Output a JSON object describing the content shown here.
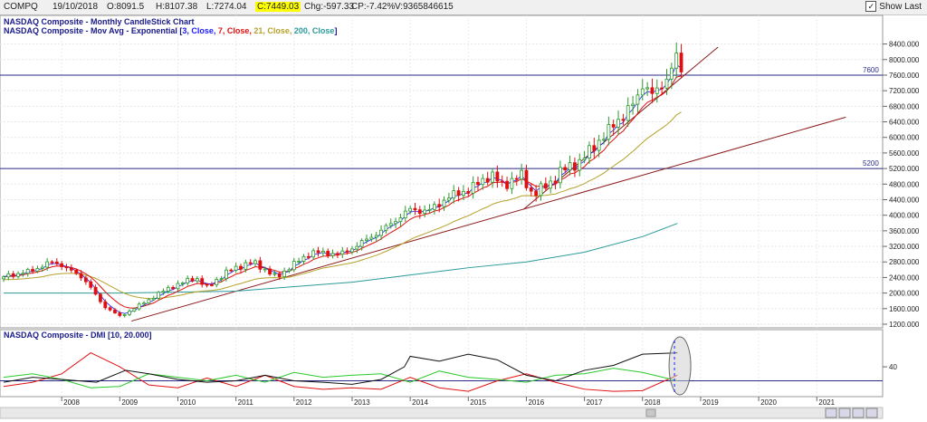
{
  "header": {
    "symbol": "COMPQ",
    "date": "19/10/2018",
    "open": "O:8091.5",
    "high": "H:8107.38",
    "low": "L:7274.04",
    "close": "C:7449.03",
    "chg": "Chg:-597.33",
    "cp": "CP:-7.42%",
    "volume": "V:9365846615",
    "show_last": "Show Last"
  },
  "colors": {
    "up": "#2b9a2b",
    "down": "#e01010",
    "ema3": "#1a1aff",
    "ema7": "#e01010",
    "ema21": "#b5a22a",
    "ema200": "#2a9a9a",
    "trend": "#8b1a1a",
    "hline": "#2a2a8a",
    "plus_di": "#2aca2a",
    "minus_di": "#e01010",
    "adx": "#111111"
  },
  "chart_data": [
    {
      "type": "candlestick",
      "title": "NASDAQ Composite - Monthly CandleStick Chart",
      "legend_prefix": "NASDAQ Composite - Mov Avg - Exponential [",
      "legend_parts": [
        {
          "text": "3, Close,",
          "color": "#1a1aff"
        },
        {
          "text": " 7, Close,",
          "color": "#e01010"
        },
        {
          "text": " 21, Close,",
          "color": "#b5a22a"
        },
        {
          "text": " 200, Close",
          "color": "#2a9a9a"
        }
      ],
      "legend_suffix": "]",
      "ylim": [
        1200,
        8600
      ],
      "y_ticks": [
        "8400.000",
        "8000.000",
        "7600.000",
        "7200.000",
        "6800.000",
        "6400.000",
        "6000.000",
        "5600.000",
        "5200.000",
        "4800.000",
        "4400.000",
        "4000.000",
        "3600.000",
        "3200.000",
        "2800.000",
        "2400.000",
        "2000.000",
        "1600.000",
        "1200.000"
      ],
      "x_ticks": [
        "2008",
        "2009",
        "2010",
        "2011",
        "2012",
        "2013",
        "2014",
        "2015",
        "2016",
        "2017",
        "2018",
        "2019",
        "2020",
        "2021"
      ],
      "x_range": [
        2007,
        2021.9
      ],
      "horizontal_lines": [
        {
          "value": 7600,
          "label": "7600"
        },
        {
          "value": 5200,
          "label": "5200"
        }
      ],
      "trendlines": [
        {
          "x1": 2009.2,
          "y1": 1280,
          "x2": 2021.5,
          "y2": 6520
        },
        {
          "x1": 2015.95,
          "y1": 4150,
          "x2": 2019.3,
          "y2": 8320
        }
      ],
      "ema200": [
        [
          2007,
          2000
        ],
        [
          2009,
          2000
        ],
        [
          2011,
          2050
        ],
        [
          2013,
          2280
        ],
        [
          2015,
          2650
        ],
        [
          2016,
          2800
        ],
        [
          2017,
          3050
        ],
        [
          2018,
          3450
        ],
        [
          2018.6,
          3790
        ]
      ],
      "anchors": [
        [
          2007.0,
          2420
        ],
        [
          2007.5,
          2580
        ],
        [
          2007.8,
          2800
        ],
        [
          2008.0,
          2720
        ],
        [
          2008.4,
          2350
        ],
        [
          2008.7,
          1700
        ],
        [
          2009.0,
          1400
        ],
        [
          2009.3,
          1650
        ],
        [
          2009.8,
          2100
        ],
        [
          2010.3,
          2400
        ],
        [
          2010.5,
          2150
        ],
        [
          2010.9,
          2600
        ],
        [
          2011.3,
          2800
        ],
        [
          2011.7,
          2400
        ],
        [
          2012.0,
          2750
        ],
        [
          2012.3,
          3050
        ],
        [
          2012.8,
          3000
        ],
        [
          2013.0,
          3150
        ],
        [
          2013.5,
          3600
        ],
        [
          2014.0,
          4150
        ],
        [
          2014.3,
          4100
        ],
        [
          2014.7,
          4500
        ],
        [
          2015.0,
          4650
        ],
        [
          2015.4,
          5050
        ],
        [
          2015.6,
          4750
        ],
        [
          2015.9,
          5050
        ],
        [
          2016.1,
          4550
        ],
        [
          2016.4,
          4800
        ],
        [
          2016.6,
          5150
        ],
        [
          2016.9,
          5350
        ],
        [
          2017.4,
          6150
        ],
        [
          2017.9,
          6950
        ],
        [
          2018.0,
          7400
        ],
        [
          2018.2,
          7050
        ],
        [
          2018.4,
          7500
        ],
        [
          2018.6,
          8100
        ],
        [
          2018.7,
          7450
        ]
      ]
    },
    {
      "type": "line",
      "title": "NASDAQ Composite - DMI [10, 20.000]",
      "ylim": [
        0,
        75
      ],
      "y_ticks": [
        "40"
      ],
      "threshold": 20,
      "adx": [
        [
          2007,
          18
        ],
        [
          2007.5,
          25
        ],
        [
          2008,
          22
        ],
        [
          2008.6,
          18
        ],
        [
          2009.1,
          35
        ],
        [
          2009.5,
          30
        ],
        [
          2010,
          22
        ],
        [
          2010.5,
          18
        ],
        [
          2011,
          20
        ],
        [
          2011.5,
          28
        ],
        [
          2012,
          20
        ],
        [
          2012.5,
          18
        ],
        [
          2013,
          15
        ],
        [
          2013.5,
          22
        ],
        [
          2013.9,
          40
        ],
        [
          2014,
          55
        ],
        [
          2014.5,
          48
        ],
        [
          2015,
          58
        ],
        [
          2015.5,
          50
        ],
        [
          2016,
          28
        ],
        [
          2016.5,
          20
        ],
        [
          2017,
          35
        ],
        [
          2017.5,
          42
        ],
        [
          2018,
          58
        ],
        [
          2018.6,
          60
        ]
      ],
      "plus_di": [
        [
          2007,
          25
        ],
        [
          2007.5,
          30
        ],
        [
          2008,
          22
        ],
        [
          2008.5,
          10
        ],
        [
          2009,
          12
        ],
        [
          2009.5,
          30
        ],
        [
          2010,
          25
        ],
        [
          2010.5,
          20
        ],
        [
          2011,
          28
        ],
        [
          2011.5,
          18
        ],
        [
          2012,
          32
        ],
        [
          2012.5,
          25
        ],
        [
          2013,
          28
        ],
        [
          2013.5,
          30
        ],
        [
          2014,
          18
        ],
        [
          2014.5,
          34
        ],
        [
          2015,
          25
        ],
        [
          2015.5,
          22
        ],
        [
          2016,
          18
        ],
        [
          2016.5,
          28
        ],
        [
          2017,
          30
        ],
        [
          2017.5,
          38
        ],
        [
          2018,
          32
        ],
        [
          2018.6,
          20
        ]
      ],
      "minus_di": [
        [
          2007,
          12
        ],
        [
          2007.5,
          18
        ],
        [
          2008,
          30
        ],
        [
          2008.5,
          60
        ],
        [
          2009,
          40
        ],
        [
          2009.5,
          14
        ],
        [
          2010,
          10
        ],
        [
          2010.5,
          24
        ],
        [
          2011,
          12
        ],
        [
          2011.5,
          28
        ],
        [
          2012,
          12
        ],
        [
          2012.5,
          8
        ],
        [
          2013,
          10
        ],
        [
          2013.5,
          8
        ],
        [
          2014,
          25
        ],
        [
          2014.5,
          10
        ],
        [
          2015,
          5
        ],
        [
          2015.5,
          20
        ],
        [
          2016,
          30
        ],
        [
          2016.5,
          18
        ],
        [
          2017,
          8
        ],
        [
          2017.5,
          5
        ],
        [
          2018,
          6
        ],
        [
          2018.6,
          28
        ]
      ]
    }
  ]
}
